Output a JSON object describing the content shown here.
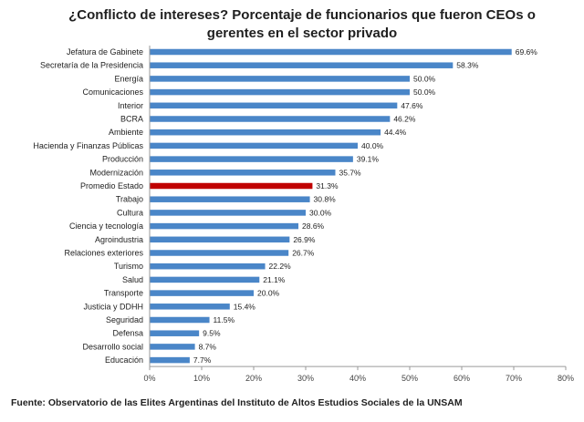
{
  "chart_data": {
    "type": "bar",
    "orientation": "horizontal",
    "title_lines": [
      "¿Conflicto de intereses? Porcentaje de funcionarios que fueron CEOs o",
      "gerentes en el sector privado"
    ],
    "categories": [
      "Jefatura de Gabinete",
      "Secretaría de la Presidencia",
      "Energía",
      "Comunicaciones",
      "Interior",
      "BCRA",
      "Ambiente",
      "Hacienda y Finanzas Públicas",
      "Producción",
      "Modernización",
      "Promedio Estado",
      "Trabajo",
      "Cultura",
      "Ciencia y tecnología",
      "Agroindustria",
      "Relaciones exteriores",
      "Turismo",
      "Salud",
      "Transporte",
      "Justicia y DDHH",
      "Seguridad",
      "Defensa",
      "Desarrollo social",
      "Educación"
    ],
    "values": [
      69.6,
      58.3,
      50.0,
      50.0,
      47.6,
      46.2,
      44.4,
      40.0,
      39.1,
      35.7,
      31.3,
      30.8,
      30.0,
      28.6,
      26.9,
      26.7,
      22.2,
      21.1,
      20.0,
      15.4,
      11.5,
      9.5,
      8.7,
      7.7
    ],
    "value_labels": [
      "69.6%",
      "58.3%",
      "50.0%",
      "50.0%",
      "47.6%",
      "46.2%",
      "44.4%",
      "40.0%",
      "39.1%",
      "35.7%",
      "31.3%",
      "30.8%",
      "30.0%",
      "28.6%",
      "26.9%",
      "26.7%",
      "22.2%",
      "21.1%",
      "20.0%",
      "15.4%",
      "11.5%",
      "9.5%",
      "8.7%",
      "7.7%"
    ],
    "highlight_category": "Promedio Estado",
    "xlim": [
      0,
      80
    ],
    "x_ticks": [
      0,
      10,
      20,
      30,
      40,
      50,
      60,
      70,
      80
    ],
    "x_tick_labels": [
      "0%",
      "10%",
      "20%",
      "30%",
      "40%",
      "50%",
      "60%",
      "70%",
      "80%"
    ],
    "grid": false,
    "legend": "none",
    "colors": {
      "bar": "#4a86c8",
      "highlight": "#c00000",
      "axis": "#9a9a9a"
    },
    "source": "Fuente: Observatorio de las Elites Argentinas del Instituto de Altos Estudios Sociales de la UNSAM"
  }
}
